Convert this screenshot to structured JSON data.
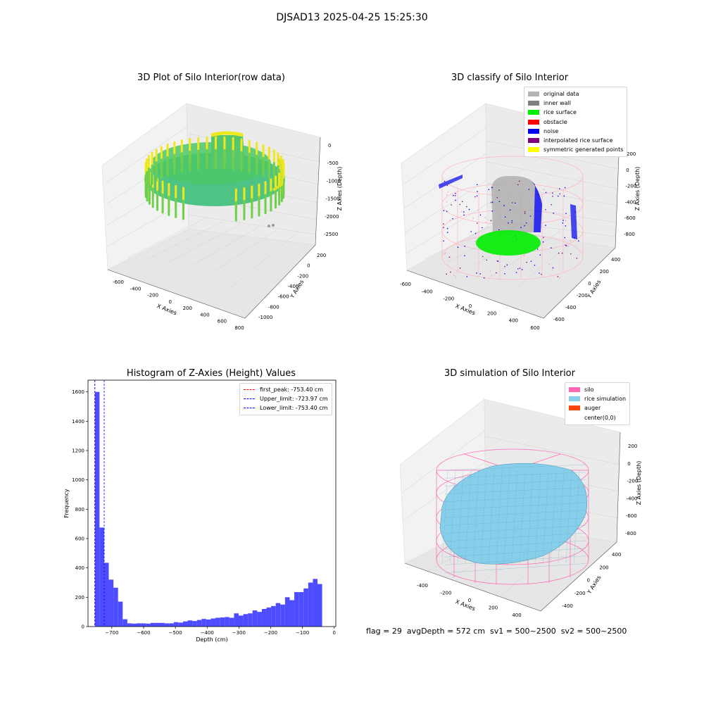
{
  "figure_title": "DJSAD13 2025-04-25 15:25:30",
  "footer_text": "flag = 29  avgDepth = 572 cm  sv1 = 500~2500  sv2 = 500~2500",
  "chart_data": [
    {
      "type": "scatter",
      "title": "3D Plot of Silo Interior(row data)",
      "xlabel": "X Axies",
      "ylabel": "Y Axies",
      "zlabel": "Z Axies (Depth)",
      "x_ticks": [
        "-600",
        "-400",
        "-200",
        "0",
        "200",
        "400",
        "600",
        "800"
      ],
      "y_ticks": [
        "200",
        "0",
        "-200",
        "-400",
        "-600",
        "-800",
        "-1000"
      ],
      "z_ticks": [
        "0",
        "-500",
        "-1000",
        "-1500",
        "-2000",
        "-2500"
      ],
      "colormap": [
        "#2fb87e",
        "#5ccc5a",
        "#b8e12a",
        "#f0e81e"
      ],
      "grid": true
    },
    {
      "type": "scatter",
      "title": "3D classify of Silo Interior",
      "xlabel": "X Axies",
      "ylabel": "Y Axies",
      "zlabel": "Z Axies (Depth)",
      "x_ticks": [
        "-600",
        "-400",
        "-200",
        "0",
        "200",
        "400",
        "600"
      ],
      "y_ticks": [
        "400",
        "200",
        "0",
        "-200",
        "-400",
        "-600"
      ],
      "z_ticks": [
        "200",
        "0",
        "-200",
        "-400",
        "-600",
        "-800"
      ],
      "grid": true,
      "legend_position": "top-right",
      "legend": [
        {
          "label": "original data",
          "color": "#b3b3b3"
        },
        {
          "label": "inner wall",
          "color": "#808080"
        },
        {
          "label": "rice surface",
          "color": "#00ee00"
        },
        {
          "label": "obstacle",
          "color": "#ff0000"
        },
        {
          "label": "noise",
          "color": "#0000ee"
        },
        {
          "label": "interpolated rice surface",
          "color": "#800080"
        },
        {
          "label": "symmetric generated points",
          "color": "#ffff00"
        }
      ],
      "cylinder_color": "#ffb6c1"
    },
    {
      "type": "bar",
      "title": "Histogram of Z-Axies (Height) Values",
      "xlabel": "Depth (cm)",
      "ylabel": "Frequency",
      "xlim": [
        -775,
        5
      ],
      "ylim": [
        0,
        1680
      ],
      "x_ticks": [
        -700,
        -600,
        -500,
        -400,
        -300,
        -200,
        -100,
        0
      ],
      "y_ticks": [
        0,
        200,
        400,
        600,
        800,
        1000,
        1200,
        1400,
        1600
      ],
      "bin_edges_start": -753.4,
      "bin_width": 14.6,
      "values": [
        1600,
        675,
        435,
        320,
        265,
        170,
        50,
        22,
        20,
        22,
        22,
        20,
        25,
        25,
        25,
        22,
        22,
        30,
        27,
        35,
        42,
        38,
        45,
        52,
        48,
        55,
        60,
        62,
        65,
        60,
        90,
        75,
        85,
        90,
        110,
        100,
        120,
        130,
        140,
        160,
        150,
        200,
        180,
        235,
        235,
        260,
        300,
        325,
        290
      ],
      "bar_color": "#4d4dff",
      "vlines": [
        {
          "label": "first_peak: -753.40 cm",
          "value": -753.4,
          "color": "#ff0000"
        },
        {
          "label": "Upper_limit: -723.97 cm",
          "value": -723.97,
          "color": "#0000ff"
        },
        {
          "label": "Lower_limit: -753.40 cm",
          "value": -753.4,
          "color": "#0000ff"
        }
      ],
      "legend_position": "top-right",
      "grid": false
    },
    {
      "type": "surface",
      "title": "3D simulation of Silo Interior",
      "xlabel": "X Axies",
      "ylabel": "Y Axies",
      "zlabel": "Z Axies (Depth)",
      "x_ticks": [
        "-400",
        "-200",
        "0",
        "200",
        "400"
      ],
      "y_ticks": [
        "400",
        "200",
        "0",
        "-200",
        "-400"
      ],
      "z_ticks": [
        "200",
        "0",
        "-200",
        "-400",
        "-600",
        "-800"
      ],
      "grid": true,
      "legend_position": "top-right",
      "legend": [
        {
          "label": "silo",
          "color": "#ff69b4"
        },
        {
          "label": "rice simulation",
          "color": "#87ceeb"
        },
        {
          "label": "auger",
          "color": "#ff4500"
        },
        {
          "label": "center(0,0)",
          "color": "#ffffff"
        }
      ]
    }
  ]
}
